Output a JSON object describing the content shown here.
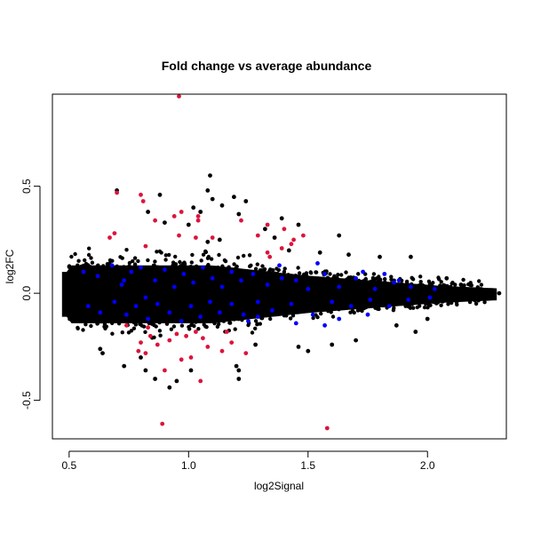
{
  "chart_data": {
    "type": "scatter",
    "title": "Fold change vs average abundance",
    "xlabel": "log2Signal",
    "ylabel": "log2FC",
    "xlim": [
      0.43,
      2.33
    ],
    "ylim": [
      -0.68,
      0.93
    ],
    "x_ticks": [
      0.5,
      1.0,
      1.5,
      2.0
    ],
    "x_tick_labels": [
      "0.5",
      "1.0",
      "1.5",
      "2.0"
    ],
    "y_ticks": [
      -0.5,
      0.0,
      0.5
    ],
    "y_tick_labels": [
      "-0.5",
      "0.0",
      "0.5"
    ],
    "grid": false,
    "legend": "none",
    "colors": {
      "background": "#000000",
      "highlight_blue": "#0000ff",
      "highlight_red": "#dc143c"
    },
    "series": [
      {
        "color": "#000000",
        "points": [
          [
            0.7,
            0.48
          ],
          [
            0.88,
            0.46
          ],
          [
            1.09,
            0.55
          ],
          [
            1.08,
            0.48
          ],
          [
            1.1,
            0.44
          ],
          [
            1.19,
            0.45
          ],
          [
            1.24,
            0.43
          ],
          [
            1.14,
            0.41
          ],
          [
            0.83,
            0.38
          ],
          [
            1.05,
            0.38
          ],
          [
            1.02,
            0.4
          ],
          [
            1.39,
            0.35
          ],
          [
            1.21,
            0.37
          ],
          [
            0.9,
            0.33
          ],
          [
            1.0,
            0.32
          ],
          [
            1.46,
            0.32
          ],
          [
            1.32,
            0.3
          ],
          [
            1.63,
            0.27
          ],
          [
            1.36,
            0.26
          ],
          [
            1.13,
            0.25
          ],
          [
            1.08,
            0.24
          ],
          [
            1.42,
            0.2
          ],
          [
            1.55,
            0.19
          ],
          [
            1.67,
            0.18
          ],
          [
            1.8,
            0.17
          ],
          [
            1.93,
            0.17
          ],
          [
            2.08,
            0.07
          ],
          [
            2.14,
            0.04
          ],
          [
            2.25,
            0.01
          ],
          [
            2.3,
            0.0
          ],
          [
            0.63,
            -0.26
          ],
          [
            0.64,
            -0.28
          ],
          [
            0.73,
            -0.34
          ],
          [
            0.8,
            -0.3
          ],
          [
            0.82,
            -0.36
          ],
          [
            0.86,
            -0.4
          ],
          [
            0.92,
            -0.44
          ],
          [
            0.95,
            -0.41
          ],
          [
            1.01,
            -0.36
          ],
          [
            1.2,
            -0.34
          ],
          [
            1.21,
            -0.36
          ],
          [
            1.21,
            -0.4
          ],
          [
            1.28,
            -0.24
          ],
          [
            1.46,
            -0.25
          ],
          [
            1.5,
            -0.27
          ],
          [
            1.6,
            -0.24
          ],
          [
            1.7,
            -0.22
          ],
          [
            1.87,
            -0.15
          ],
          [
            1.95,
            -0.18
          ],
          [
            2.0,
            -0.12
          ],
          [
            0.48,
            -0.02
          ],
          [
            0.49,
            0.03
          ]
        ]
      },
      {
        "color": "#0000ff",
        "points": [
          [
            0.56,
            0.1
          ],
          [
            0.62,
            0.08
          ],
          [
            0.68,
            0.13
          ],
          [
            0.72,
            0.04
          ],
          [
            0.76,
            0.1
          ],
          [
            0.8,
            0.12
          ],
          [
            0.86,
            0.06
          ],
          [
            0.9,
            0.11
          ],
          [
            0.94,
            0.03
          ],
          [
            0.98,
            0.09
          ],
          [
            1.02,
            0.05
          ],
          [
            1.06,
            0.12
          ],
          [
            1.1,
            0.07
          ],
          [
            1.14,
            0.03
          ],
          [
            1.18,
            0.1
          ],
          [
            1.22,
            0.06
          ],
          [
            1.27,
            0.09
          ],
          [
            1.33,
            0.04
          ],
          [
            1.38,
            0.13
          ],
          [
            1.45,
            0.06
          ],
          [
            1.5,
            0.02
          ],
          [
            1.57,
            0.09
          ],
          [
            1.63,
            0.03
          ],
          [
            1.7,
            0.07
          ],
          [
            1.78,
            0.02
          ],
          [
            1.86,
            0.05
          ],
          [
            1.93,
            0.03
          ],
          [
            2.03,
            0.02
          ],
          [
            0.58,
            -0.06
          ],
          [
            0.63,
            -0.09
          ],
          [
            0.69,
            -0.04
          ],
          [
            0.74,
            -0.1
          ],
          [
            0.78,
            -0.06
          ],
          [
            0.83,
            -0.12
          ],
          [
            0.87,
            -0.05
          ],
          [
            0.92,
            -0.09
          ],
          [
            0.97,
            -0.13
          ],
          [
            1.01,
            -0.06
          ],
          [
            1.05,
            -0.11
          ],
          [
            1.09,
            -0.04
          ],
          [
            1.13,
            -0.09
          ],
          [
            1.18,
            -0.05
          ],
          [
            1.23,
            -0.1
          ],
          [
            1.29,
            -0.04
          ],
          [
            1.35,
            -0.08
          ],
          [
            1.43,
            -0.05
          ],
          [
            1.52,
            -0.1
          ],
          [
            1.6,
            -0.04
          ],
          [
            1.68,
            -0.06
          ],
          [
            1.76,
            -0.03
          ],
          [
            1.84,
            -0.06
          ],
          [
            1.92,
            -0.03
          ],
          [
            2.01,
            -0.02
          ],
          [
            1.39,
            0.07
          ],
          [
            1.54,
            0.14
          ],
          [
            1.73,
            0.1
          ],
          [
            1.82,
            0.09
          ],
          [
            1.88,
            0.06
          ],
          [
            1.29,
            -0.11
          ],
          [
            1.25,
            -0.13
          ],
          [
            0.82,
            -0.02
          ],
          [
            0.73,
            0.06
          ],
          [
            1.45,
            -0.14
          ],
          [
            1.57,
            -0.15
          ],
          [
            1.63,
            -0.12
          ],
          [
            1.75,
            -0.1
          ]
        ]
      },
      {
        "color": "#dc143c",
        "points": [
          [
            0.96,
            0.92
          ],
          [
            0.7,
            0.47
          ],
          [
            0.8,
            0.46
          ],
          [
            0.81,
            0.43
          ],
          [
            0.97,
            0.38
          ],
          [
            0.94,
            0.36
          ],
          [
            1.04,
            0.36
          ],
          [
            1.04,
            0.34
          ],
          [
            0.86,
            0.34
          ],
          [
            1.22,
            0.34
          ],
          [
            1.33,
            0.32
          ],
          [
            1.4,
            0.3
          ],
          [
            1.48,
            0.27
          ],
          [
            1.29,
            0.27
          ],
          [
            1.44,
            0.25
          ],
          [
            1.43,
            0.23
          ],
          [
            1.03,
            0.26
          ],
          [
            1.1,
            0.26
          ],
          [
            0.69,
            0.28
          ],
          [
            0.67,
            0.26
          ],
          [
            0.96,
            0.27
          ],
          [
            0.82,
            0.22
          ],
          [
            1.33,
            0.19
          ],
          [
            1.34,
            0.17
          ],
          [
            1.39,
            0.21
          ],
          [
            0.74,
            -0.15
          ],
          [
            0.83,
            -0.16
          ],
          [
            0.84,
            -0.2
          ],
          [
            0.8,
            -0.23
          ],
          [
            0.87,
            -0.24
          ],
          [
            0.92,
            -0.22
          ],
          [
            0.95,
            -0.19
          ],
          [
            0.99,
            -0.2
          ],
          [
            1.03,
            -0.18
          ],
          [
            1.06,
            -0.21
          ],
          [
            1.08,
            -0.25
          ],
          [
            1.14,
            -0.27
          ],
          [
            1.18,
            -0.23
          ],
          [
            0.79,
            -0.27
          ],
          [
            0.82,
            -0.28
          ],
          [
            0.97,
            -0.31
          ],
          [
            1.01,
            -0.3
          ],
          [
            0.9,
            -0.36
          ],
          [
            1.05,
            -0.41
          ],
          [
            0.89,
            -0.61
          ],
          [
            1.58,
            -0.63
          ],
          [
            1.24,
            -0.28
          ],
          [
            1.16,
            -0.18
          ]
        ]
      }
    ]
  }
}
